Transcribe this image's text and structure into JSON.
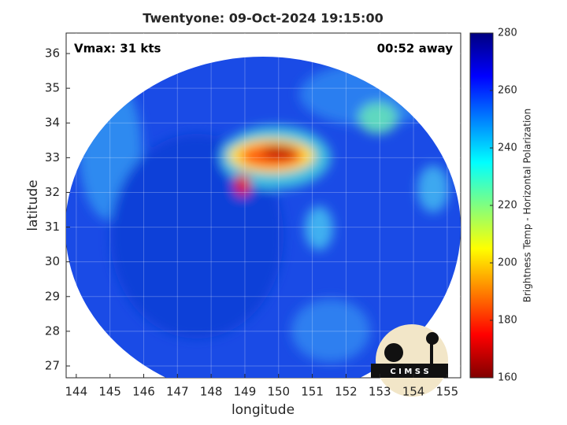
{
  "chart_data": {
    "type": "image",
    "title": "Twentyone: 09-Oct-2024 19:15:00",
    "annotations": [
      "Vmax: 31 kts",
      "00:52 away"
    ],
    "x_label": "longitude",
    "y_label": "latitude",
    "xlim": [
      143.7,
      155.4
    ],
    "xticks": [
      144,
      145,
      146,
      147,
      148,
      149,
      150,
      151,
      152,
      153,
      154,
      155
    ],
    "ylim": [
      26.66,
      36.59
    ],
    "yticks": [
      27,
      28,
      29,
      30,
      31,
      32,
      33,
      34,
      35,
      36
    ],
    "grid": true,
    "colorbar": {
      "label": "Brightness Temp - Horizontal Polarization",
      "lim": [
        160,
        280
      ],
      "ticks": [
        160,
        180,
        200,
        220,
        240,
        260,
        280
      ],
      "colors": [
        "#800000",
        "#ff0000",
        "#ff8000",
        "#ffff00",
        "#80ff80",
        "#00ffff",
        "#0080ff",
        "#0000ff",
        "#000080"
      ]
    },
    "logo_text": "C I M S S"
  }
}
